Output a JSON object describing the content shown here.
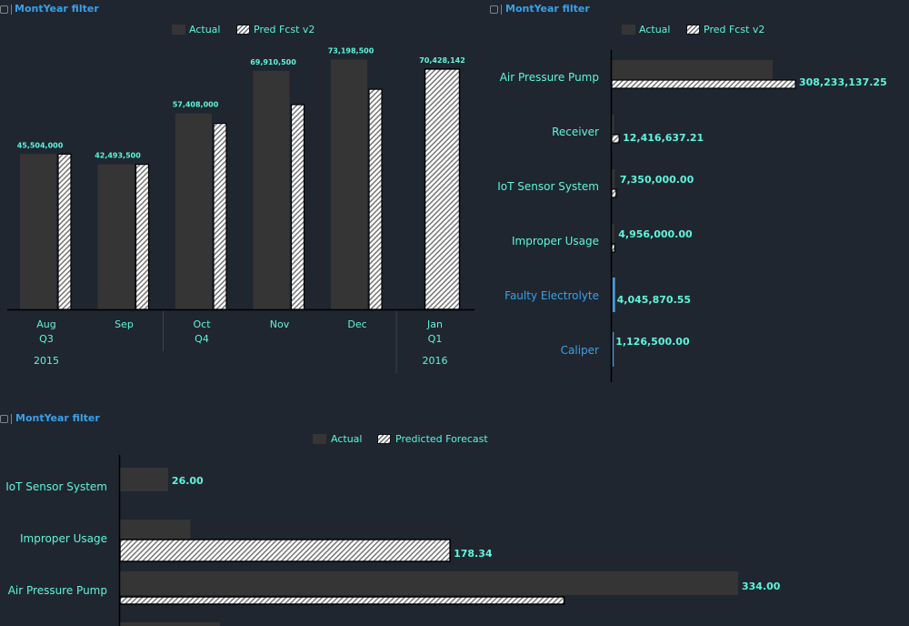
{
  "filter_label": "MontYear filter",
  "colors": {
    "actual": "#353535",
    "hatch_stripe": "#6d6d6d",
    "label": "#5ef5dc",
    "link": "#3aa0e8",
    "axis": "#000000"
  },
  "icons": [
    "filter-icon"
  ],
  "charts": [
    {
      "legend": {
        "actual": "Actual",
        "forecast": "Pred Fcst v2"
      },
      "chart_data": {
        "type": "bar",
        "categories": [
          "Aug",
          "Sep",
          "Oct",
          "Nov",
          "Dec",
          "Jan"
        ],
        "quarters": [
          {
            "label": "Q3",
            "span": [
              "Aug",
              "Sep"
            ]
          },
          {
            "label": "Q4",
            "span": [
              "Oct",
              "Nov",
              "Dec"
            ]
          },
          {
            "label": "Q1",
            "span": [
              "Jan"
            ]
          }
        ],
        "years": [
          {
            "label": "2015",
            "span": [
              "Aug",
              "Sep",
              "Oct",
              "Nov",
              "Dec"
            ]
          },
          {
            "label": "2016",
            "span": [
              "Jan"
            ]
          }
        ],
        "series": [
          {
            "name": "Actual",
            "values": [
              45504000,
              42493500,
              57408000,
              69910500,
              73198500,
              null
            ]
          },
          {
            "name": "Pred Fcst v2",
            "values": [
              45504000,
              42493500,
              54500000,
              60000000,
              64500000,
              70428142
            ]
          }
        ],
        "data_labels": [
          "45,504,000",
          "42,493,500",
          "57,408,000",
          "69,910,500",
          "73,198,500",
          "70,428,142"
        ],
        "ylim": [
          0,
          80000000
        ]
      }
    },
    {
      "legend": {
        "actual": "Actual",
        "forecast": "Pred Fcst v2"
      },
      "chart_data": {
        "type": "bar",
        "orientation": "horizontal",
        "categories": [
          "Air Pressure Pump",
          "Receiver",
          "IoT Sensor System",
          "Improper Usage",
          "Faulty Electrolyte",
          "Caliper"
        ],
        "highlighted_categories": [
          "Faulty Electrolyte",
          "Caliper"
        ],
        "series": [
          {
            "name": "Actual",
            "values": [
              270000000,
              4000000,
              5000000,
              4500000,
              4045870.55,
              1126500
            ]
          },
          {
            "name": "Pred Fcst v2",
            "values": [
              308233137.25,
              12416637.21,
              7350000,
              4956000,
              0,
              0
            ]
          }
        ],
        "data_labels": [
          "308,233,137.25",
          "12,416,637.21",
          "7,350,000.00",
          "4,956,000.00",
          "4,045,870.55",
          "1,126,500.00"
        ],
        "xlim": [
          0,
          308233137.25
        ]
      }
    },
    {
      "legend": {
        "actual": "Actual",
        "forecast": "Predicted Forecast"
      },
      "chart_data": {
        "type": "bar",
        "orientation": "horizontal",
        "categories": [
          "IoT Sensor System",
          "Improper Usage",
          "Air Pressure Pump"
        ],
        "series": [
          {
            "name": "Actual",
            "values": [
              26.0,
              38.0,
              334.0
            ]
          },
          {
            "name": "Predicted Forecast",
            "values": [
              0,
              178.34,
              240.0
            ]
          }
        ],
        "data_labels": [
          "26.00",
          "178.34",
          "334.00"
        ],
        "xlim": [
          0,
          334
        ]
      }
    }
  ]
}
